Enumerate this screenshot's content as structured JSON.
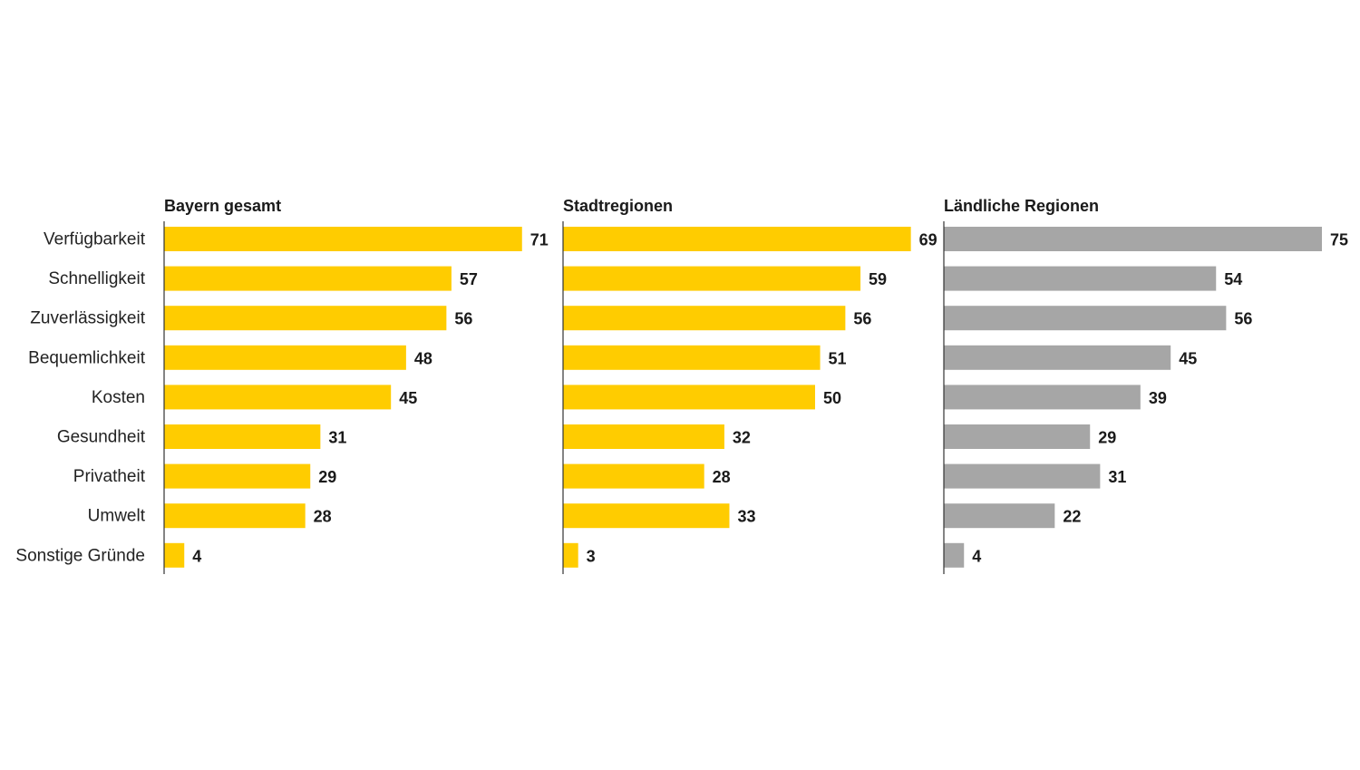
{
  "chart_data": {
    "type": "bar",
    "orientation": "horizontal",
    "categories": [
      "Verfügbarkeit",
      "Schnelligkeit",
      "Zuverlässigkeit",
      "Bequemlichkeit",
      "Kosten",
      "Gesundheit",
      "Privatheit",
      "Umwelt",
      "Sonstige Gründe"
    ],
    "panels": [
      {
        "title": "Bayern gesamt",
        "color": "#FFCC00",
        "values": [
          71,
          57,
          56,
          48,
          45,
          31,
          29,
          28,
          4
        ]
      },
      {
        "title": "Stadtregionen",
        "color": "#FFCC00",
        "values": [
          69,
          59,
          56,
          51,
          50,
          32,
          28,
          33,
          3
        ]
      },
      {
        "title": "Ländliche Regionen",
        "color": "#A6A6A6",
        "values": [
          75,
          54,
          56,
          45,
          39,
          29,
          31,
          22,
          4
        ]
      }
    ],
    "data_labels": true,
    "grid": false,
    "legend": "none"
  }
}
